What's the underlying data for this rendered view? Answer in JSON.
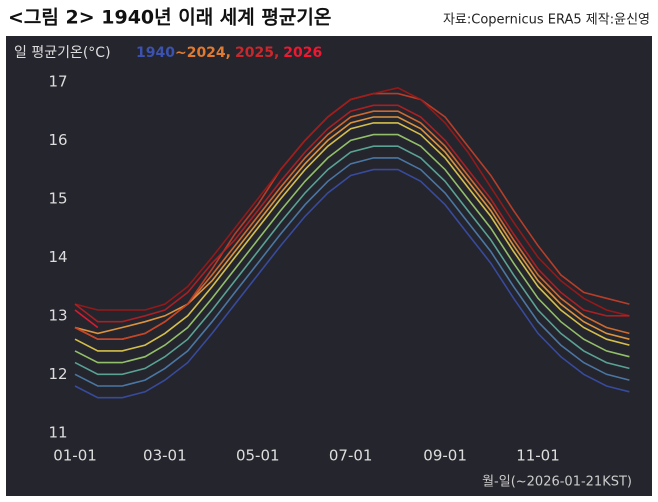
{
  "chart_data": {
    "type": "line",
    "title": "<그림 2> 1940년 이래 세계 평균기온",
    "source": "자료:Copernicus ERA5  제작:윤신영",
    "ylabel": "일 평균기온(°C)",
    "xlabel": "월-일(~2026-01-21KST)",
    "legend": [
      {
        "label": "1940",
        "color": "#3b52b0"
      },
      {
        "label": "~2024,",
        "color": "#e07a30"
      },
      {
        "label": "2025,",
        "color": "#c8282c"
      },
      {
        "label": "2026",
        "color": "#f01830"
      }
    ],
    "x": [
      0,
      15,
      31,
      46,
      59,
      74,
      90,
      105,
      120,
      135,
      151,
      166,
      181,
      196,
      212,
      227,
      243,
      258,
      273,
      288,
      304,
      319,
      334,
      349,
      364
    ],
    "xlim": [
      0,
      365
    ],
    "xticks": [
      {
        "value": 0,
        "label": "01-01"
      },
      {
        "value": 59,
        "label": "03-01"
      },
      {
        "value": 120,
        "label": "05-01"
      },
      {
        "value": 181,
        "label": "07-01"
      },
      {
        "value": 243,
        "label": "09-01"
      },
      {
        "value": 304,
        "label": "11-01"
      }
    ],
    "ylim": [
      10.5,
      17.7
    ],
    "yticks": [
      11,
      12,
      13,
      14,
      15,
      16,
      17
    ],
    "grid": false,
    "series": [
      {
        "color": "#3a4fa8",
        "values": [
          11.8,
          11.6,
          11.6,
          11.7,
          11.9,
          12.2,
          12.7,
          13.2,
          13.7,
          14.2,
          14.7,
          15.1,
          15.4,
          15.5,
          15.5,
          15.3,
          14.9,
          14.4,
          13.9,
          13.3,
          12.7,
          12.3,
          12.0,
          11.8,
          11.7
        ]
      },
      {
        "color": "#4f7fb0",
        "values": [
          12.0,
          11.8,
          11.8,
          11.9,
          12.1,
          12.4,
          12.9,
          13.4,
          13.9,
          14.4,
          14.9,
          15.3,
          15.6,
          15.7,
          15.7,
          15.5,
          15.1,
          14.6,
          14.1,
          13.5,
          12.9,
          12.5,
          12.2,
          12.0,
          11.9
        ]
      },
      {
        "color": "#5fb0a0",
        "values": [
          12.2,
          12.0,
          12.0,
          12.1,
          12.3,
          12.6,
          13.1,
          13.6,
          14.1,
          14.6,
          15.1,
          15.5,
          15.8,
          15.9,
          15.9,
          15.7,
          15.3,
          14.8,
          14.3,
          13.7,
          13.1,
          12.7,
          12.4,
          12.2,
          12.1
        ]
      },
      {
        "color": "#9fd070",
        "values": [
          12.4,
          12.2,
          12.2,
          12.3,
          12.5,
          12.8,
          13.3,
          13.8,
          14.3,
          14.8,
          15.3,
          15.7,
          16.0,
          16.1,
          16.1,
          15.9,
          15.5,
          15.0,
          14.5,
          13.9,
          13.3,
          12.9,
          12.6,
          12.4,
          12.3
        ]
      },
      {
        "color": "#e8d050",
        "values": [
          12.6,
          12.4,
          12.4,
          12.5,
          12.7,
          13.0,
          13.5,
          14.0,
          14.5,
          15.0,
          15.5,
          15.9,
          16.2,
          16.3,
          16.3,
          16.1,
          15.7,
          15.2,
          14.7,
          14.1,
          13.5,
          13.1,
          12.8,
          12.6,
          12.5
        ]
      },
      {
        "color": "#f0a040",
        "values": [
          12.8,
          12.7,
          12.8,
          12.9,
          13.0,
          13.2,
          13.6,
          14.1,
          14.6,
          15.1,
          15.6,
          16.0,
          16.3,
          16.4,
          16.4,
          16.2,
          15.8,
          15.3,
          14.8,
          14.2,
          13.6,
          13.2,
          12.9,
          12.7,
          12.6
        ]
      },
      {
        "color": "#e07030",
        "values": [
          12.8,
          12.6,
          12.6,
          12.7,
          12.9,
          13.2,
          13.7,
          14.2,
          14.7,
          15.2,
          15.7,
          16.1,
          16.4,
          16.5,
          16.5,
          16.3,
          15.9,
          15.4,
          14.9,
          14.3,
          13.7,
          13.3,
          13.0,
          12.8,
          12.7
        ]
      },
      {
        "color": "#c84028",
        "values": [
          12.8,
          12.6,
          12.6,
          12.7,
          12.9,
          13.2,
          13.8,
          14.4,
          14.9,
          15.5,
          16.0,
          16.4,
          16.7,
          16.8,
          16.8,
          16.7,
          16.4,
          15.9,
          15.4,
          14.8,
          14.2,
          13.7,
          13.4,
          13.3,
          13.2
        ]
      },
      {
        "color": "#a01818",
        "values": [
          13.2,
          13.1,
          13.1,
          13.1,
          13.2,
          13.5,
          14.0,
          14.5,
          15.0,
          15.5,
          16.0,
          16.4,
          16.7,
          16.8,
          16.9,
          16.7,
          16.3,
          15.8,
          15.2,
          14.6,
          14.0,
          13.6,
          13.3,
          13.1,
          13.0
        ]
      },
      {
        "color": "#b82024",
        "values": [
          13.2,
          12.9,
          12.9,
          13.0,
          13.1,
          13.4,
          13.9,
          14.3,
          14.8,
          15.3,
          15.8,
          16.2,
          16.5,
          16.6,
          16.6,
          16.4,
          16.0,
          15.5,
          15.0,
          14.4,
          13.8,
          13.4,
          13.1,
          13.0,
          13.0
        ]
      },
      {
        "color": "#f01830",
        "values": [
          13.1,
          12.8,
          null,
          null,
          null,
          null,
          null,
          null,
          null,
          null,
          null,
          null,
          null,
          null,
          null,
          null,
          null,
          null,
          null,
          null,
          null,
          null,
          null,
          null,
          null
        ]
      }
    ]
  }
}
